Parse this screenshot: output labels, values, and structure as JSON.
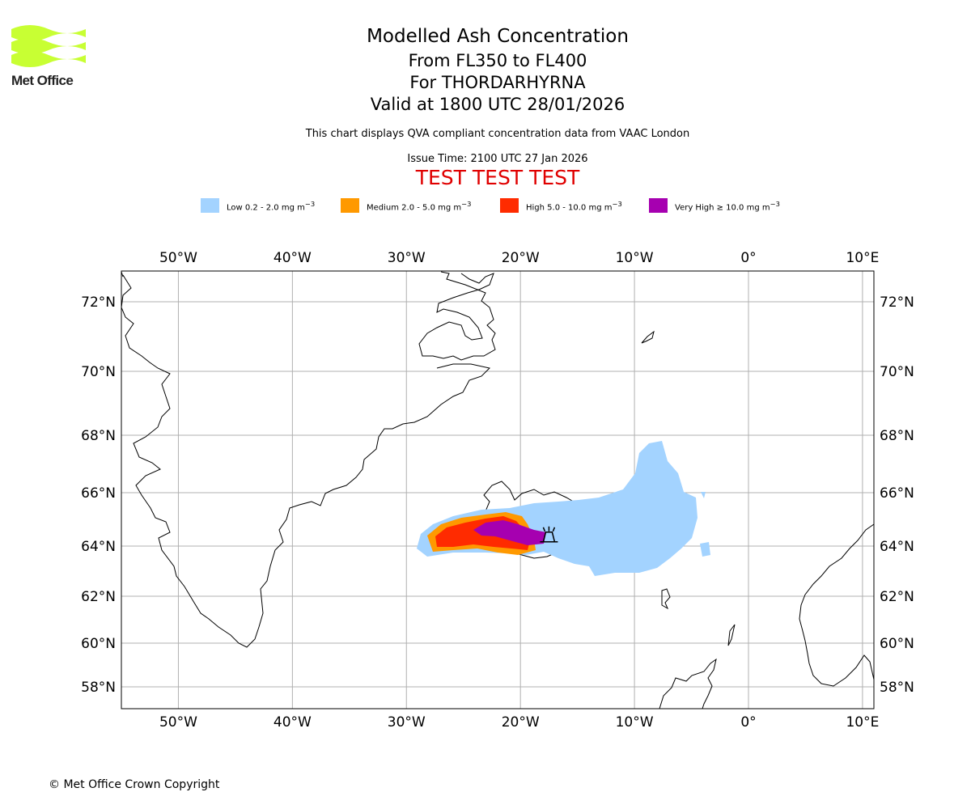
{
  "brand": {
    "name": "Met Office",
    "logo_color": "#c8ff33"
  },
  "header": {
    "title": "Modelled Ash Concentration",
    "flight_levels": "From FL350 to FL400",
    "volcano": "For THORDARHYRNA",
    "valid_time": "Valid at 1800 UTC 28/01/2026",
    "description": "This chart displays QVA compliant concentration data from VAAC London",
    "issue_time": "Issue Time: 2100 UTC 27 Jan 2026",
    "test_banner": "TEST TEST TEST"
  },
  "legend": [
    {
      "label": "Low 0.2 - 2.0 mg m",
      "exp": "−3",
      "color": "#a3d3ff"
    },
    {
      "label": "Medium 2.0 - 5.0 mg m",
      "exp": "−3",
      "color": "#ff9900"
    },
    {
      "label": "High 5.0 - 10.0 mg m",
      "exp": "−3",
      "color": "#ff2b00"
    },
    {
      "label": "Very High  ≥  10.0 mg m",
      "exp": "−3",
      "color": "#a600b0"
    }
  ],
  "map": {
    "lon_range": [
      -55,
      11
    ],
    "lat_range": [
      57.3,
      72.8
    ],
    "lon_ticks": [
      "50°W",
      "40°W",
      "30°W",
      "20°W",
      "10°W",
      "0°",
      "10°E"
    ],
    "lat_ticks": [
      "72°N",
      "70°N",
      "68°N",
      "66°N",
      "64°N",
      "62°N",
      "60°N",
      "58°N"
    ],
    "volcano_marker": {
      "lon": -17.5,
      "lat": 64.4,
      "icon": "volcano-icon"
    }
  },
  "footer": {
    "copyright": "© Met Office Crown Copyright"
  }
}
